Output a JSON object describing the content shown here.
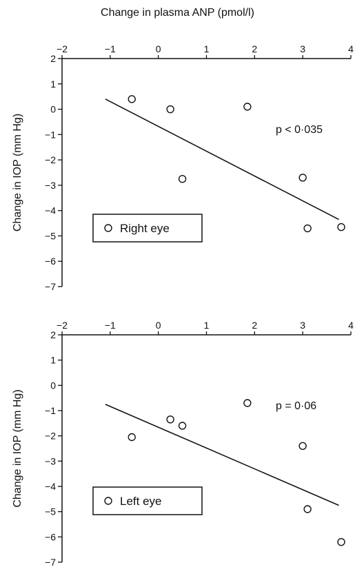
{
  "figure": {
    "title": "Change in plasma ANP (pmol/l)"
  },
  "chart_data": [
    {
      "type": "scatter",
      "title": "",
      "xlabel": "Change in plasma ANP (pmol/l)",
      "ylabel": "Change in IOP (mm Hg)",
      "xlim": [
        -2,
        4
      ],
      "ylim": [
        -7,
        2
      ],
      "xticks": [
        "−2",
        "−1",
        "0",
        "1",
        "2",
        "3",
        "4"
      ],
      "yticks": [
        "2",
        "1",
        "0",
        "−1",
        "−2",
        "−3",
        "−4",
        "−5",
        "−6",
        "−7"
      ],
      "grid": false,
      "legend": {
        "label": "Right eye",
        "position": "bottom-left"
      },
      "annotation": "p < 0·035",
      "series": [
        {
          "name": "Right eye",
          "x": [
            -0.55,
            0.25,
            0.5,
            1.85,
            3.0,
            3.1,
            3.8
          ],
          "y": [
            0.4,
            0.0,
            -2.75,
            0.1,
            -2.7,
            -4.7,
            -4.65
          ]
        }
      ],
      "regression_line": {
        "x": [
          -1.1,
          3.75
        ],
        "y": [
          0.4,
          -4.35
        ]
      }
    },
    {
      "type": "scatter",
      "title": "",
      "xlabel": "",
      "ylabel": "Change in IOP (mm Hg)",
      "xlim": [
        -2,
        4
      ],
      "ylim": [
        -7,
        2
      ],
      "xticks": [
        "−2",
        "−1",
        "0",
        "1",
        "2",
        "3",
        "4"
      ],
      "yticks": [
        "2",
        "1",
        "0",
        "−1",
        "−2",
        "−3",
        "−4",
        "−5",
        "−6",
        "−7"
      ],
      "grid": false,
      "legend": {
        "label": "Left eye",
        "position": "bottom-left"
      },
      "annotation": "p = 0·06",
      "series": [
        {
          "name": "Left eye",
          "x": [
            -0.55,
            0.25,
            0.5,
            1.85,
            3.0,
            3.1,
            3.8
          ],
          "y": [
            -2.05,
            -1.35,
            -1.6,
            -0.7,
            -2.4,
            -4.9,
            -6.2
          ]
        }
      ],
      "regression_line": {
        "x": [
          -1.1,
          3.75
        ],
        "y": [
          -0.75,
          -4.75
        ]
      }
    }
  ]
}
